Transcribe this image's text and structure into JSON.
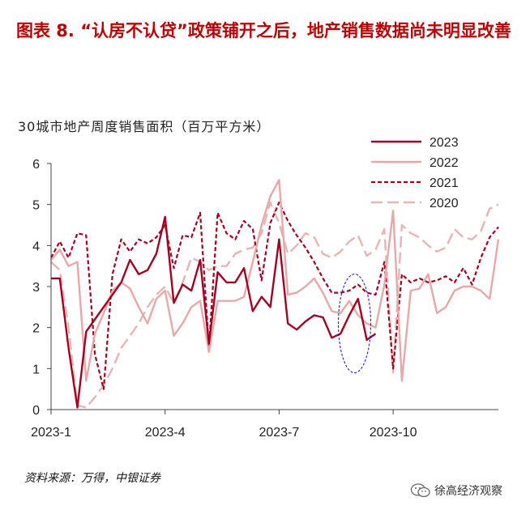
{
  "title": "图表 8. “认房不认贷”政策铺开之后，地产销售数据尚未明显改善",
  "source": "资料来源：万得，中银证券",
  "watermark": "徐高经济观察",
  "colors": {
    "title": "#c00000",
    "s2023": "#a50021",
    "s2022": "#e8a8a8",
    "s2021": "#a50021",
    "s2020": "#e8b4b4",
    "highlight": "#2020c8"
  },
  "chart_data": {
    "type": "line",
    "title": "30城市地产周度销售面积（百万平方米）",
    "xlabel": "",
    "ylabel": "",
    "ylim": [
      0,
      6
    ],
    "yticks": [
      "0",
      "1",
      "2",
      "3",
      "4",
      "5",
      "6"
    ],
    "x_range": [
      1,
      52
    ],
    "xticks": [
      {
        "label": "2023-1",
        "week": 1
      },
      {
        "label": "2023-4",
        "week": 14
      },
      {
        "label": "2023-7",
        "week": 27
      },
      {
        "label": "2023-10",
        "week": 40
      }
    ],
    "grid": false,
    "legend": "top-right",
    "series": [
      {
        "name": "2023",
        "style": "solid",
        "values": [
          3.2,
          3.2,
          1.5,
          0.05,
          1.9,
          2.2,
          2.5,
          2.8,
          3.1,
          3.65,
          3.3,
          3.4,
          3.8,
          4.7,
          2.6,
          3.05,
          2.9,
          3.65,
          1.6,
          3.35,
          3.1,
          3.1,
          3.45,
          2.4,
          2.75,
          2.5,
          4.15,
          2.1,
          1.95,
          2.15,
          2.3,
          2.25,
          1.75,
          1.85,
          2.3,
          2.7,
          1.7,
          1.85
        ]
      },
      {
        "name": "2022",
        "style": "solid",
        "values": [
          3.65,
          3.9,
          3.5,
          3.6,
          0.7,
          1.85,
          2.35,
          2.9,
          3.1,
          2.95,
          2.5,
          2.1,
          2.7,
          2.9,
          1.8,
          2.1,
          2.5,
          2.65,
          1.4,
          2.65,
          2.65,
          2.65,
          2.75,
          3.6,
          4.5,
          5.2,
          5.6,
          2.8,
          2.85,
          3.0,
          3.2,
          2.85,
          2.4,
          2.35,
          2.65,
          2.3,
          2.1,
          2.0,
          3.05,
          4.85,
          0.7,
          2.9,
          2.95,
          3.3,
          2.35,
          2.5,
          2.9,
          3.0,
          3.0,
          2.9,
          2.7,
          4.15
        ]
      },
      {
        "name": "2021",
        "style": "dash",
        "values": [
          3.7,
          4.1,
          3.7,
          4.3,
          4.25,
          1.35,
          0.5,
          3.3,
          4.15,
          3.85,
          4.15,
          4.05,
          4.2,
          4.5,
          3.45,
          4.25,
          4.2,
          4.8,
          1.5,
          4.8,
          4.3,
          4.15,
          4.6,
          4.4,
          3.15,
          4.55,
          5.05,
          4.6,
          4.25,
          3.95,
          3.6,
          3.2,
          2.85,
          2.85,
          2.9,
          3.05,
          2.85,
          2.8,
          3.6,
          1.0,
          3.3,
          3.1,
          3.2,
          3.1,
          3.15,
          3.25,
          3.1,
          3.45,
          3.05,
          3.7,
          4.2,
          4.45
        ]
      },
      {
        "name": "2020",
        "style": "longdash",
        "values": [
          3.6,
          3.4,
          2.0,
          0.1,
          0.05,
          0.3,
          0.6,
          1.0,
          1.5,
          1.8,
          2.1,
          2.5,
          2.8,
          3.0,
          2.6,
          3.1,
          3.7,
          3.6,
          3.4,
          3.5,
          3.5,
          3.8,
          3.9,
          3.95,
          4.3,
          5.05,
          4.55,
          3.8,
          4.0,
          4.3,
          4.2,
          3.8,
          3.7,
          3.85,
          4.1,
          4.25,
          3.75,
          3.9,
          4.4,
          0.9,
          4.5,
          4.3,
          4.2,
          4.0,
          3.85,
          3.95,
          4.4,
          4.2,
          4.15,
          4.35,
          4.9,
          5.0
        ]
      }
    ]
  }
}
